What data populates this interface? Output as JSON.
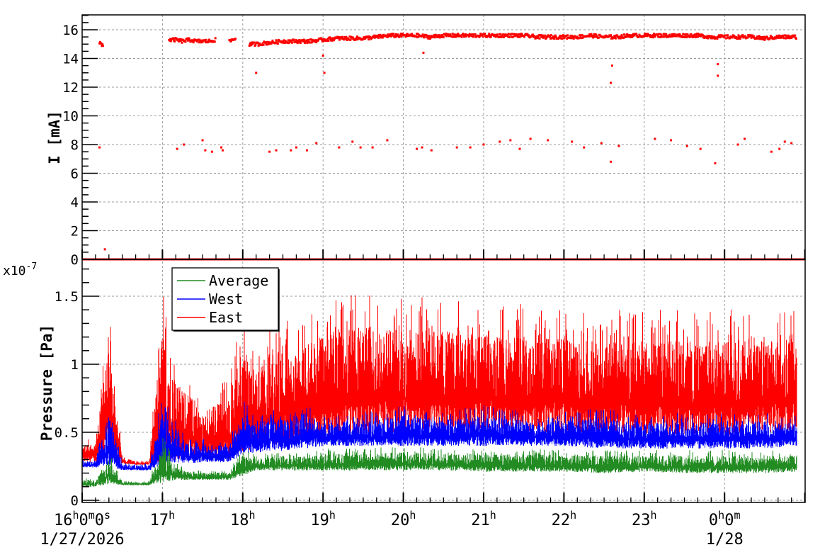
{
  "chart_data": [
    {
      "type": "scatter",
      "ylabel": "I [mA]",
      "ylim": [
        0,
        17
      ],
      "yticks": [
        "0",
        "2",
        "4",
        "6",
        "8",
        "10",
        "12",
        "14",
        "16"
      ],
      "grid": true,
      "color": "#ff0000",
      "main_level": [
        [
          "16:10",
          null
        ],
        [
          "16:13",
          15.1
        ],
        [
          "16:16",
          14.9
        ],
        [
          "16:20",
          null
        ],
        [
          "17:05",
          15.3
        ],
        [
          "17:10",
          15.3
        ],
        [
          "17:15",
          15.2
        ],
        [
          "17:20",
          15.3
        ],
        [
          "17:25",
          15.2
        ],
        [
          "17:30",
          15.2
        ],
        [
          "17:35",
          15.2
        ],
        [
          "17:40",
          15.3
        ],
        [
          "17:45",
          null
        ],
        [
          "17:50",
          15.2
        ],
        [
          "17:55",
          15.4
        ],
        [
          "18:00",
          null
        ],
        [
          "18:05",
          15.0
        ],
        [
          "18:10",
          15.0
        ],
        [
          "18:20",
          15.1
        ],
        [
          "18:30",
          15.2
        ],
        [
          "18:40",
          15.2
        ],
        [
          "18:50",
          15.2
        ],
        [
          "19:00",
          15.3
        ],
        [
          "19:10",
          15.4
        ],
        [
          "19:20",
          15.4
        ],
        [
          "19:30",
          15.4
        ],
        [
          "19:40",
          15.5
        ],
        [
          "19:50",
          15.6
        ],
        [
          "20:00",
          15.6
        ],
        [
          "20:10",
          15.6
        ],
        [
          "20:20",
          15.5
        ],
        [
          "20:30",
          15.6
        ],
        [
          "20:40",
          15.6
        ],
        [
          "20:50",
          15.6
        ],
        [
          "21:00",
          15.6
        ],
        [
          "21:10",
          15.6
        ],
        [
          "21:20",
          15.6
        ],
        [
          "21:30",
          15.6
        ],
        [
          "21:40",
          15.5
        ],
        [
          "21:50",
          15.5
        ],
        [
          "22:00",
          15.5
        ],
        [
          "22:10",
          15.5
        ],
        [
          "22:20",
          15.6
        ],
        [
          "22:30",
          15.5
        ],
        [
          "22:40",
          15.5
        ],
        [
          "22:50",
          15.6
        ],
        [
          "23:00",
          15.6
        ],
        [
          "23:10",
          15.6
        ],
        [
          "23:20",
          15.6
        ],
        [
          "23:30",
          15.6
        ],
        [
          "23:40",
          15.6
        ],
        [
          "23:50",
          15.5
        ],
        [
          "24:00",
          15.5
        ],
        [
          "24:10",
          15.5
        ],
        [
          "24:20",
          15.5
        ],
        [
          "24:30",
          15.4
        ],
        [
          "24:40",
          15.5
        ],
        [
          "24:50",
          15.5
        ],
        [
          "24:54",
          15.5
        ]
      ],
      "outliers": [
        [
          "16:13",
          7.8
        ],
        [
          "16:17",
          0.7
        ],
        [
          "17:11",
          7.7
        ],
        [
          "17:16",
          8.0
        ],
        [
          "17:30",
          8.3
        ],
        [
          "17:32",
          7.6
        ],
        [
          "17:37",
          7.5
        ],
        [
          "17:44",
          7.8
        ],
        [
          "17:45",
          7.6
        ],
        [
          "18:10",
          13.0
        ],
        [
          "18:20",
          7.5
        ],
        [
          "18:25",
          7.6
        ],
        [
          "18:36",
          7.6
        ],
        [
          "18:40",
          7.8
        ],
        [
          "18:48",
          7.6
        ],
        [
          "18:55",
          8.1
        ],
        [
          "19:00",
          14.2
        ],
        [
          "19:01",
          13.0
        ],
        [
          "19:12",
          7.8
        ],
        [
          "19:22",
          8.2
        ],
        [
          "19:28",
          7.8
        ],
        [
          "19:37",
          7.8
        ],
        [
          "19:48",
          8.3
        ],
        [
          "20:10",
          7.7
        ],
        [
          "20:14",
          7.8
        ],
        [
          "20:15",
          14.4
        ],
        [
          "20:21",
          7.6
        ],
        [
          "20:40",
          7.8
        ],
        [
          "20:50",
          7.8
        ],
        [
          "21:00",
          8.0
        ],
        [
          "21:12",
          8.2
        ],
        [
          "21:20",
          8.3
        ],
        [
          "21:27",
          7.7
        ],
        [
          "21:35",
          8.4
        ],
        [
          "21:48",
          8.3
        ],
        [
          "22:06",
          8.2
        ],
        [
          "22:15",
          7.8
        ],
        [
          "22:28",
          8.1
        ],
        [
          "22:35",
          6.8
        ],
        [
          "22:35",
          12.3
        ],
        [
          "22:36",
          13.5
        ],
        [
          "22:41",
          7.9
        ],
        [
          "23:08",
          8.4
        ],
        [
          "23:20",
          8.3
        ],
        [
          "23:32",
          7.9
        ],
        [
          "23:42",
          7.7
        ],
        [
          "23:53",
          6.7
        ],
        [
          "23:55",
          12.8
        ],
        [
          "23:55",
          13.6
        ],
        [
          "24:10",
          8.0
        ],
        [
          "24:15",
          8.4
        ],
        [
          "24:35",
          7.5
        ],
        [
          "24:41",
          7.7
        ],
        [
          "24:45",
          8.2
        ],
        [
          "24:50",
          8.1
        ]
      ],
      "zero_level": 0
    },
    {
      "type": "line",
      "ylabel": "Pressure [Pa]",
      "yscale_label": "x10",
      "yscale_exponent": "-7",
      "ylim": [
        0,
        1.77
      ],
      "yticks": [
        "0",
        "0.5",
        "1",
        "1.5"
      ],
      "grid": true,
      "xlim": [
        "16:00",
        "24:54"
      ],
      "xticks": [
        {
          "t": "16:00",
          "h": "16",
          "sup": "h",
          "extra": "0",
          "sup2": "m",
          "extra2": "0",
          "sup3": "s",
          "date": "1/27/2026"
        },
        {
          "t": "17:00",
          "h": "17",
          "sup": "h"
        },
        {
          "t": "18:00",
          "h": "18",
          "sup": "h"
        },
        {
          "t": "19:00",
          "h": "19",
          "sup": "h"
        },
        {
          "t": "20:00",
          "h": "20",
          "sup": "h"
        },
        {
          "t": "21:00",
          "h": "21",
          "sup": "h"
        },
        {
          "t": "22:00",
          "h": "22",
          "sup": "h"
        },
        {
          "t": "23:00",
          "h": "23",
          "sup": "h"
        },
        {
          "t": "24:00",
          "h": "0",
          "sup": "h",
          "extra": "0",
          "sup2": "m",
          "date": "1/28"
        }
      ],
      "legend": {
        "placement": "top-left",
        "entries": [
          "Average",
          "West",
          "East"
        ]
      },
      "series": [
        {
          "name": "Average",
          "color": "#228b22",
          "envelope": [
            [
              "16:00",
              0.1,
              0.16
            ],
            [
              "16:10",
              0.1,
              0.16
            ],
            [
              "16:20",
              0.12,
              0.35
            ],
            [
              "16:30",
              0.11,
              0.15
            ],
            [
              "16:40",
              0.11,
              0.14
            ],
            [
              "16:50",
              0.11,
              0.14
            ],
            [
              "17:00",
              0.13,
              0.48
            ],
            [
              "17:10",
              0.15,
              0.28
            ],
            [
              "17:20",
              0.15,
              0.22
            ],
            [
              "17:30",
              0.15,
              0.22
            ],
            [
              "17:40",
              0.15,
              0.22
            ],
            [
              "17:50",
              0.15,
              0.22
            ],
            [
              "18:00",
              0.18,
              0.38
            ],
            [
              "18:10",
              0.22,
              0.33
            ],
            [
              "18:20",
              0.22,
              0.35
            ],
            [
              "18:30",
              0.22,
              0.35
            ],
            [
              "18:40",
              0.22,
              0.35
            ],
            [
              "18:50",
              0.22,
              0.36
            ],
            [
              "19:00",
              0.22,
              0.38
            ],
            [
              "19:30",
              0.22,
              0.38
            ],
            [
              "20:00",
              0.22,
              0.4
            ],
            [
              "20:30",
              0.22,
              0.38
            ],
            [
              "21:00",
              0.21,
              0.38
            ],
            [
              "21:30",
              0.21,
              0.38
            ],
            [
              "22:00",
              0.21,
              0.37
            ],
            [
              "22:30",
              0.2,
              0.37
            ],
            [
              "23:00",
              0.21,
              0.37
            ],
            [
              "23:30",
              0.2,
              0.37
            ],
            [
              "24:00",
              0.2,
              0.37
            ],
            [
              "24:30",
              0.2,
              0.37
            ],
            [
              "24:54",
              0.21,
              0.37
            ]
          ]
        },
        {
          "name": "West",
          "color": "#0000ff",
          "envelope": [
            [
              "16:00",
              0.24,
              0.3
            ],
            [
              "16:10",
              0.24,
              0.3
            ],
            [
              "16:20",
              0.25,
              0.75
            ],
            [
              "16:30",
              0.22,
              0.28
            ],
            [
              "16:40",
              0.22,
              0.27
            ],
            [
              "16:50",
              0.22,
              0.27
            ],
            [
              "17:00",
              0.25,
              0.8
            ],
            [
              "17:10",
              0.28,
              0.6
            ],
            [
              "17:20",
              0.27,
              0.45
            ],
            [
              "17:30",
              0.28,
              0.45
            ],
            [
              "17:40",
              0.28,
              0.45
            ],
            [
              "17:50",
              0.28,
              0.45
            ],
            [
              "18:00",
              0.33,
              0.75
            ],
            [
              "18:10",
              0.35,
              0.6
            ],
            [
              "18:20",
              0.36,
              0.7
            ],
            [
              "18:30",
              0.36,
              0.68
            ],
            [
              "18:40",
              0.38,
              0.65
            ],
            [
              "18:50",
              0.38,
              0.7
            ],
            [
              "19:00",
              0.4,
              0.62
            ],
            [
              "19:30",
              0.4,
              0.65
            ],
            [
              "20:00",
              0.4,
              0.7
            ],
            [
              "20:30",
              0.4,
              0.65
            ],
            [
              "21:00",
              0.4,
              0.7
            ],
            [
              "21:30",
              0.4,
              0.65
            ],
            [
              "22:00",
              0.4,
              0.65
            ],
            [
              "22:30",
              0.38,
              0.68
            ],
            [
              "23:00",
              0.38,
              0.62
            ],
            [
              "23:30",
              0.38,
              0.65
            ],
            [
              "24:00",
              0.38,
              0.65
            ],
            [
              "24:30",
              0.38,
              0.65
            ],
            [
              "24:54",
              0.4,
              0.62
            ]
          ]
        },
        {
          "name": "East",
          "color": "#ff0000",
          "envelope": [
            [
              "16:00",
              0.28,
              0.45
            ],
            [
              "16:10",
              0.28,
              0.48
            ],
            [
              "16:20",
              0.3,
              1.43
            ],
            [
              "16:30",
              0.27,
              0.32
            ],
            [
              "16:40",
              0.26,
              0.3
            ],
            [
              "16:50",
              0.26,
              0.29
            ],
            [
              "17:00",
              0.27,
              1.55
            ],
            [
              "17:10",
              0.3,
              1.05
            ],
            [
              "17:20",
              0.3,
              0.95
            ],
            [
              "17:30",
              0.3,
              0.75
            ],
            [
              "17:40",
              0.3,
              0.85
            ],
            [
              "17:50",
              0.3,
              0.9
            ],
            [
              "18:00",
              0.35,
              1.4
            ],
            [
              "18:10",
              0.38,
              1.1
            ],
            [
              "18:20",
              0.4,
              1.3
            ],
            [
              "18:30",
              0.4,
              1.35
            ],
            [
              "18:40",
              0.42,
              1.3
            ],
            [
              "18:50",
              0.42,
              1.4
            ],
            [
              "19:00",
              0.45,
              1.45
            ],
            [
              "19:30",
              0.48,
              1.55
            ],
            [
              "20:00",
              0.5,
              1.5
            ],
            [
              "20:30",
              0.5,
              1.5
            ],
            [
              "21:00",
              0.5,
              1.45
            ],
            [
              "21:30",
              0.5,
              1.45
            ],
            [
              "22:00",
              0.5,
              1.4
            ],
            [
              "22:30",
              0.48,
              1.4
            ],
            [
              "23:00",
              0.48,
              1.4
            ],
            [
              "23:30",
              0.48,
              1.4
            ],
            [
              "24:00",
              0.48,
              1.4
            ],
            [
              "24:30",
              0.5,
              1.4
            ],
            [
              "24:54",
              0.5,
              1.4
            ]
          ]
        }
      ]
    }
  ]
}
